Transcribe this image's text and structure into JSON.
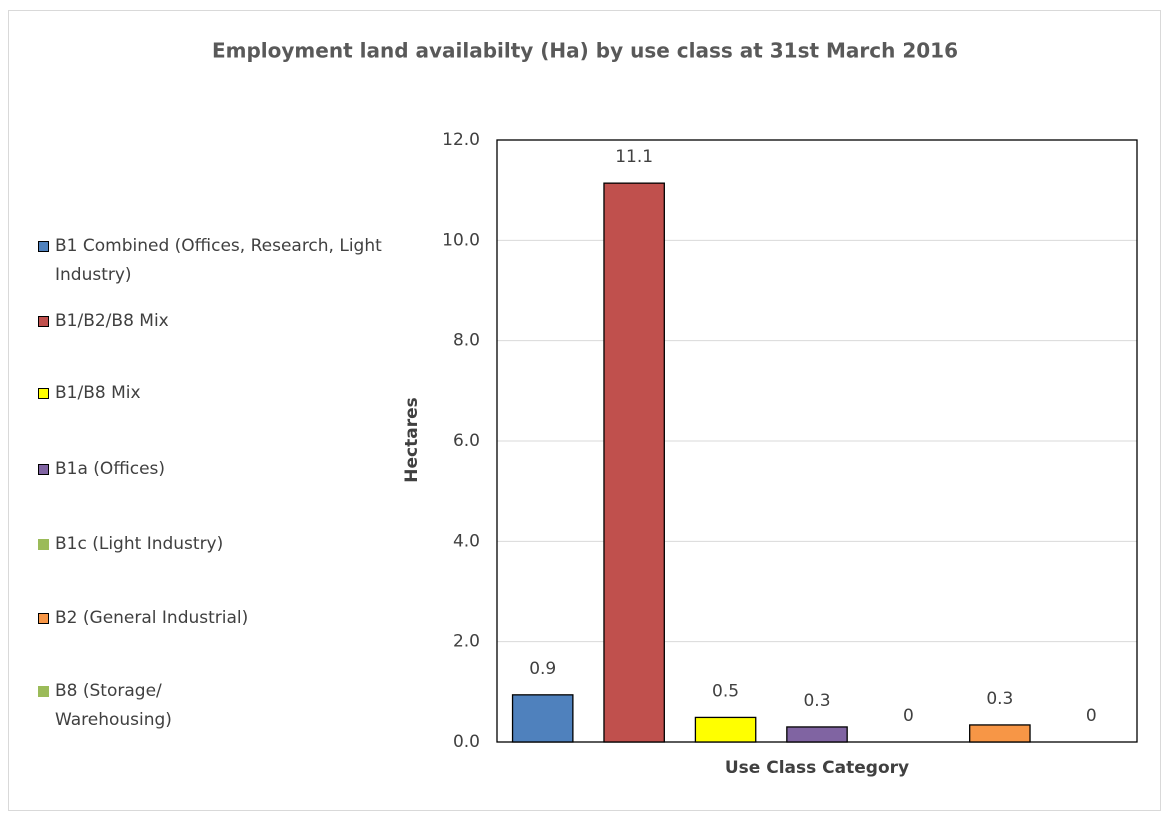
{
  "chart_data": {
    "type": "bar",
    "title": "Employment land availabilty (Ha) by use class at 31st March 2016",
    "y_label": "Hectares",
    "x_label": "Use Class Category",
    "series": [
      {
        "name": "B1 Combined (Offices, Research, Light Industry)",
        "color": "#4f81bd",
        "values": [
          0.94
        ],
        "value_labels": [
          "0.9"
        ]
      },
      {
        "name": "B1/B2/B8 Mix",
        "color": "#c0504d",
        "values": [
          11.14
        ],
        "value_labels": [
          "11.1"
        ]
      },
      {
        "name": "B1/B8 Mix",
        "color": "#ffff00",
        "values": [
          0.49
        ],
        "value_labels": [
          "0.5"
        ]
      },
      {
        "name": "B1a (Offices)",
        "color": "#8064a2",
        "values": [
          0.3
        ],
        "value_labels": [
          "0.3"
        ]
      },
      {
        "name": "B1c (Light Industry)",
        "color": "#9bbb59",
        "values": [
          0
        ],
        "value_labels": [
          "0"
        ]
      },
      {
        "name": "B2 (General Industrial)",
        "color": "#f79646",
        "values": [
          0.34
        ],
        "value_labels": [
          "0.3"
        ]
      },
      {
        "name": "B8 (Storage/ Warehousing)",
        "color": "#9bbb59",
        "values": [
          0
        ],
        "value_labels": [
          "0"
        ]
      }
    ],
    "ylim": [
      0,
      12
    ],
    "yticks": [
      {
        "value": 0,
        "label": "0.0"
      },
      {
        "value": 2,
        "label": "2.0"
      },
      {
        "value": 4,
        "label": "4.0"
      },
      {
        "value": 6,
        "label": "6.0"
      },
      {
        "value": 8,
        "label": "8.0"
      },
      {
        "value": 10,
        "label": "10.0"
      },
      {
        "value": 12,
        "label": "12.0"
      }
    ],
    "grid": true,
    "legend": "left"
  }
}
